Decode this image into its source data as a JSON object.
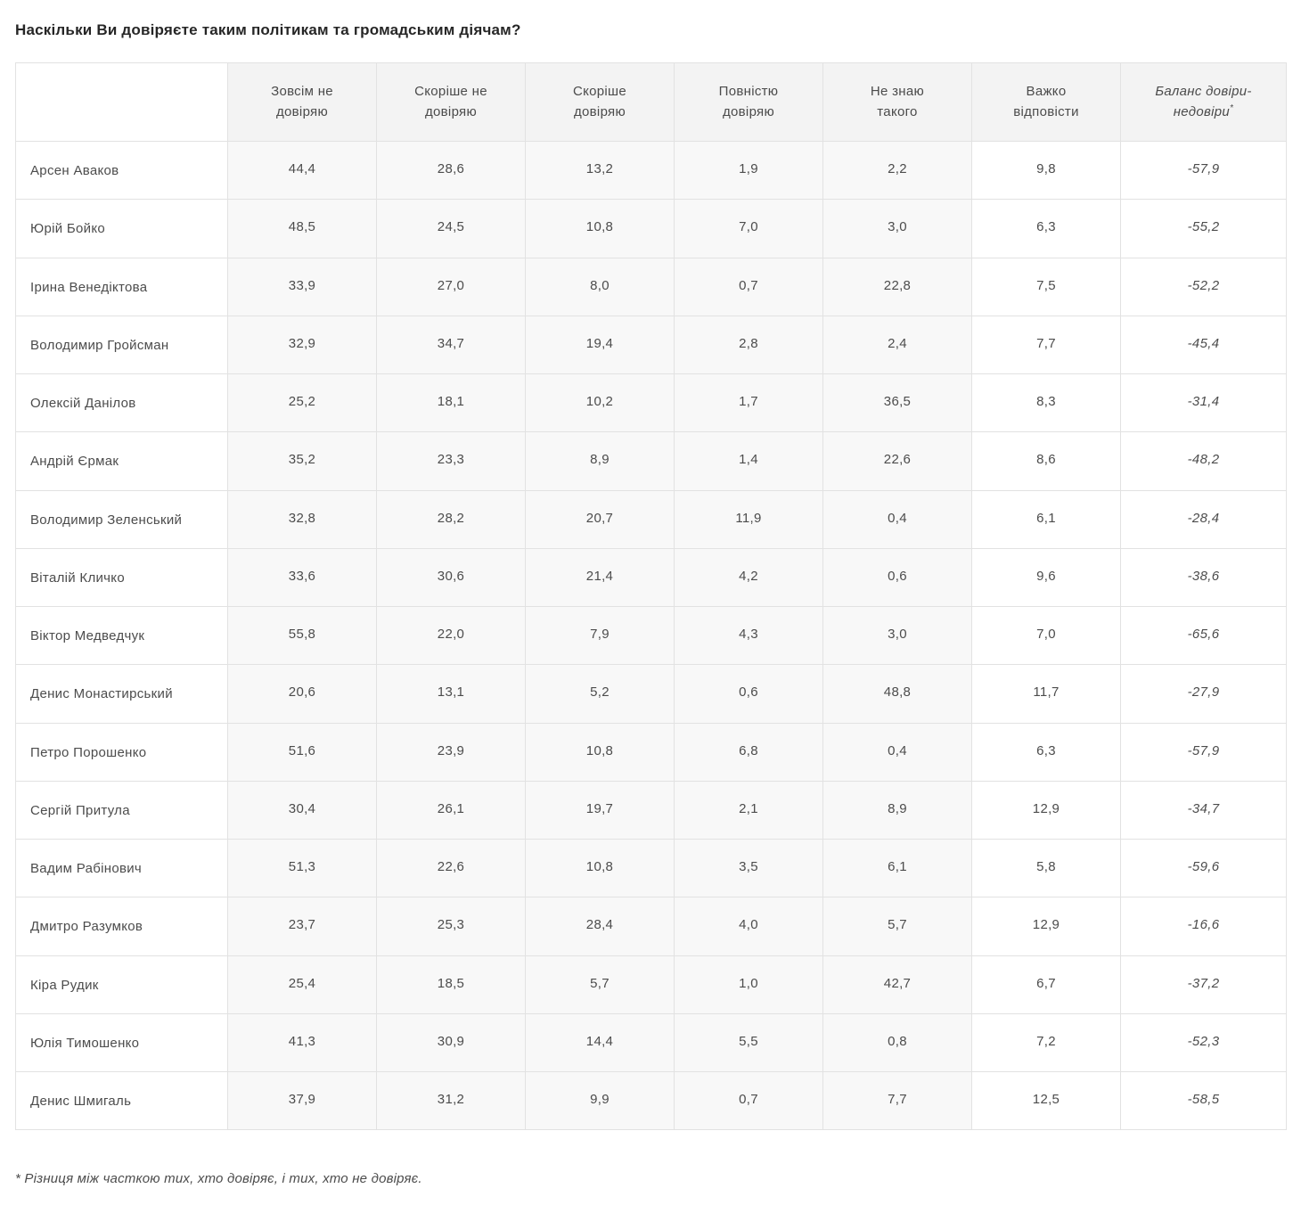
{
  "title": "Наскільки Ви довіряєте таким політикам та громадським діячам?",
  "footnote": "* Різниця між часткою тих, хто довіряє, і тих, хто не довіряє.",
  "chart_data": {
    "type": "table",
    "title": "Наскільки Ви довіряєте таким політикам та громадським діячам?",
    "columns": [
      "Зовсім не\nдовіряю",
      "Скоріше не\nдовіряю",
      "Скоріше\nдовіряю",
      "Повністю\nдовіряю",
      "Не знаю\nтакого",
      "Важко\nвідповісти",
      "Баланс довіри-\nнедовіри"
    ],
    "balance_marker": "*",
    "rows": [
      {
        "name": "Арсен Аваков",
        "values": [
          "44,4",
          "28,6",
          "13,2",
          "1,9",
          "2,2",
          "9,8",
          "-57,9"
        ]
      },
      {
        "name": "Юрій Бойко",
        "values": [
          "48,5",
          "24,5",
          "10,8",
          "7,0",
          "3,0",
          "6,3",
          "-55,2"
        ]
      },
      {
        "name": "Ірина Венедіктова",
        "values": [
          "33,9",
          "27,0",
          "8,0",
          "0,7",
          "22,8",
          "7,5",
          "-52,2"
        ]
      },
      {
        "name": "Володимир Гройсман",
        "values": [
          "32,9",
          "34,7",
          "19,4",
          "2,8",
          "2,4",
          "7,7",
          "-45,4"
        ]
      },
      {
        "name": "Олексій Данілов",
        "values": [
          "25,2",
          "18,1",
          "10,2",
          "1,7",
          "36,5",
          "8,3",
          "-31,4"
        ]
      },
      {
        "name": "Андрій Єрмак",
        "values": [
          "35,2",
          "23,3",
          "8,9",
          "1,4",
          "22,6",
          "8,6",
          "-48,2"
        ]
      },
      {
        "name": "Володимир Зеленський",
        "values": [
          "32,8",
          "28,2",
          "20,7",
          "11,9",
          "0,4",
          "6,1",
          "-28,4"
        ]
      },
      {
        "name": "Віталій Кличко",
        "values": [
          "33,6",
          "30,6",
          "21,4",
          "4,2",
          "0,6",
          "9,6",
          "-38,6"
        ]
      },
      {
        "name": "Віктор Медведчук",
        "values": [
          "55,8",
          "22,0",
          "7,9",
          "4,3",
          "3,0",
          "7,0",
          "-65,6"
        ]
      },
      {
        "name": "Денис Монастирський",
        "values": [
          "20,6",
          "13,1",
          "5,2",
          "0,6",
          "48,8",
          "11,7",
          "-27,9"
        ]
      },
      {
        "name": "Петро Порошенко",
        "values": [
          "51,6",
          "23,9",
          "10,8",
          "6,8",
          "0,4",
          "6,3",
          "-57,9"
        ]
      },
      {
        "name": "Сергій Притула",
        "values": [
          "30,4",
          "26,1",
          "19,7",
          "2,1",
          "8,9",
          "12,9",
          "-34,7"
        ]
      },
      {
        "name": "Вадим Рабінович",
        "values": [
          "51,3",
          "22,6",
          "10,8",
          "3,5",
          "6,1",
          "5,8",
          "-59,6"
        ]
      },
      {
        "name": "Дмитро Разумков",
        "values": [
          "23,7",
          "25,3",
          "28,4",
          "4,0",
          "5,7",
          "12,9",
          "-16,6"
        ]
      },
      {
        "name": "Кіра Рудик",
        "values": [
          "25,4",
          "18,5",
          "5,7",
          "1,0",
          "42,7",
          "6,7",
          "-37,2"
        ]
      },
      {
        "name": "Юлія Тимошенко",
        "values": [
          "41,3",
          "30,9",
          "14,4",
          "5,5",
          "0,8",
          "7,2",
          "-52,3"
        ]
      },
      {
        "name": "Денис Шмигаль",
        "values": [
          "37,9",
          "31,2",
          "9,9",
          "0,7",
          "7,7",
          "12,5",
          "-58,5"
        ]
      }
    ]
  }
}
